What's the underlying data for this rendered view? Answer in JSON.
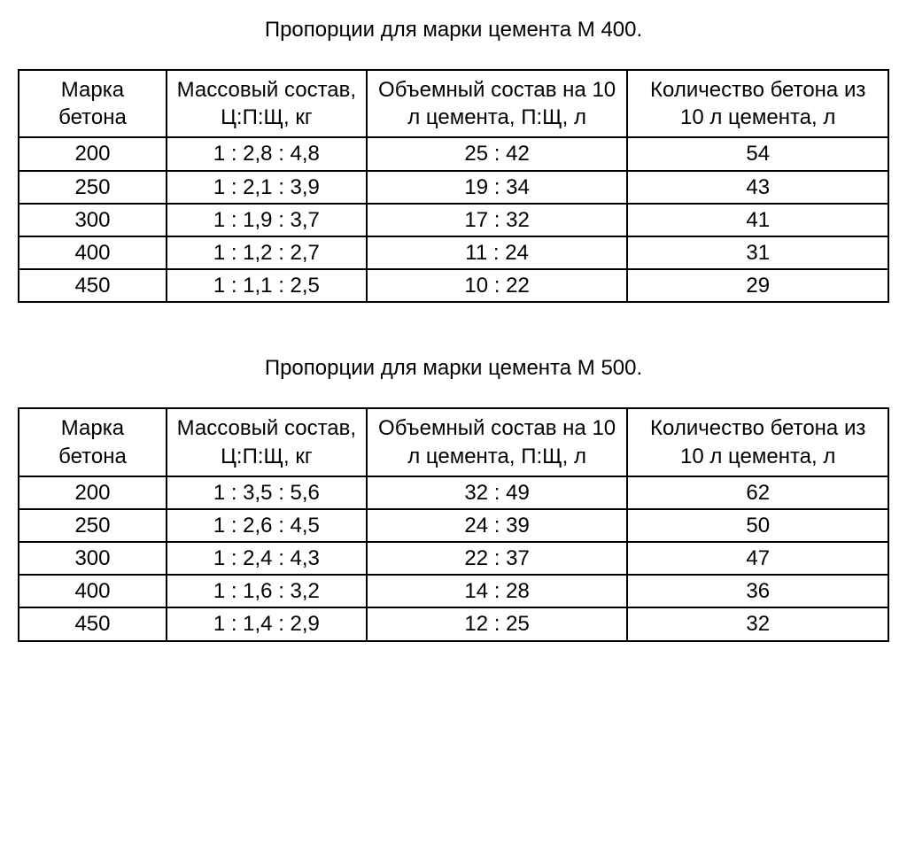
{
  "tables": [
    {
      "title": "Пропорции для марки цемента М 400.",
      "columns": [
        "Марка бетона",
        "Массовый состав, Ц:П:Щ, кг",
        "Объемный состав на 10 л цемента, П:Щ, л",
        "Количество бетона из 10 л цемента, л"
      ],
      "rows": [
        [
          "200",
          "1 : 2,8 : 4,8",
          "25 : 42",
          "54"
        ],
        [
          "250",
          "1 : 2,1 : 3,9",
          "19 : 34",
          "43"
        ],
        [
          "300",
          "1 : 1,9 : 3,7",
          "17 : 32",
          "41"
        ],
        [
          "400",
          "1 : 1,2 : 2,7",
          "11 : 24",
          "31"
        ],
        [
          "450",
          "1 : 1,1 : 2,5",
          "10 : 22",
          "29"
        ]
      ]
    },
    {
      "title": "Пропорции для марки цемента М 500.",
      "columns": [
        "Марка бетона",
        "Массовый состав, Ц:П:Щ, кг",
        "Объемный состав на 10 л цемента, П:Щ, л",
        "Количество бетона из 10 л цемента, л"
      ],
      "rows": [
        [
          "200",
          "1 : 3,5 : 5,6",
          "32 : 49",
          "62"
        ],
        [
          "250",
          "1 : 2,6 : 4,5",
          "24 : 39",
          "50"
        ],
        [
          "300",
          "1 : 2,4 : 4,3",
          "22 : 37",
          "47"
        ],
        [
          "400",
          "1 : 1,6 : 3,2",
          "14 : 28",
          "36"
        ],
        [
          "450",
          "1 : 1,4 : 2,9",
          "12 : 25",
          "32"
        ]
      ]
    }
  ],
  "styling": {
    "font_family": "Arial",
    "title_fontsize": 24,
    "cell_fontsize": 24,
    "text_color": "#000000",
    "background_color": "#ffffff",
    "border_color": "#000000",
    "border_width": 2,
    "column_widths_pct": [
      17,
      23,
      30,
      30
    ]
  }
}
